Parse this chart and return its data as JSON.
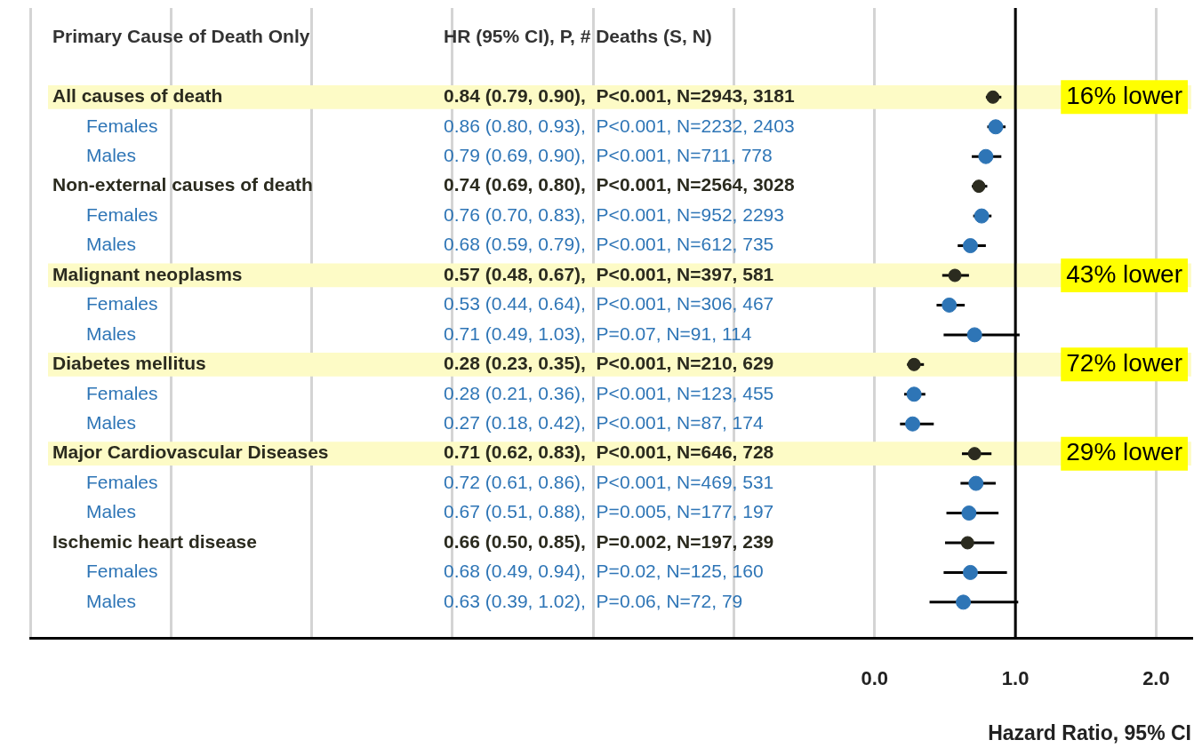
{
  "chart_data": {
    "type": "scatter",
    "orientation": "horizontal",
    "marker": "circle",
    "categories": [
      "All causes of death",
      "Females",
      "Males",
      "Non-external causes of death",
      "Females",
      "Males",
      "Malignant neoplasms",
      "Females",
      "Males",
      "Diabetes mellitus",
      "Females",
      "Males",
      "Major Cardiovascular Diseases",
      "Females",
      "Males",
      "Ischemic heart disease",
      "Females",
      "Males"
    ],
    "series": [
      {
        "color": "#2b2b1f",
        "values": [
          0.84,
          null,
          null,
          0.74,
          null,
          null,
          0.57,
          null,
          null,
          0.28,
          null,
          null,
          0.71,
          null,
          null,
          0.66,
          null,
          null
        ],
        "errors": [
          [
            0.79,
            0.9
          ],
          null,
          null,
          [
            0.69,
            0.8
          ],
          null,
          null,
          [
            0.48,
            0.67
          ],
          null,
          null,
          [
            0.23,
            0.35
          ],
          null,
          null,
          [
            0.62,
            0.83
          ],
          null,
          null,
          [
            0.5,
            0.85
          ],
          null,
          null
        ]
      },
      {
        "color": "#2e75b6",
        "values": [
          null,
          0.86,
          0.79,
          null,
          0.76,
          0.68,
          null,
          0.53,
          0.71,
          null,
          0.28,
          0.27,
          null,
          0.72,
          0.67,
          null,
          0.68,
          0.63
        ],
        "errors": [
          null,
          [
            0.8,
            0.93
          ],
          [
            0.69,
            0.9
          ],
          null,
          [
            0.7,
            0.83
          ],
          [
            0.59,
            0.79
          ],
          null,
          [
            0.44,
            0.64
          ],
          [
            0.49,
            1.03
          ],
          null,
          [
            0.21,
            0.36
          ],
          [
            0.18,
            0.42
          ],
          null,
          [
            0.61,
            0.86
          ],
          [
            0.51,
            0.88
          ],
          null,
          [
            0.49,
            0.94
          ],
          [
            0.39,
            1.02
          ]
        ]
      }
    ],
    "xlim": [
      -6,
      2.25
    ],
    "xticks": [
      {
        "value": -6,
        "label": null
      },
      {
        "value": -5,
        "label": null
      },
      {
        "value": -4,
        "label": null
      },
      {
        "value": -3,
        "label": null
      },
      {
        "value": -2,
        "label": null
      },
      {
        "value": -1,
        "label": null
      },
      {
        "value": 0,
        "label": "0.0"
      },
      {
        "value": 1,
        "label": "1.0"
      },
      {
        "value": 2,
        "label": "2.0"
      }
    ],
    "xlabel": "Hazard Ratio, 95% CI",
    "grid": "x",
    "ref_lines": [
      {
        "axis": "x",
        "value": 1,
        "color": "#000000"
      }
    ],
    "bands": [
      {
        "axis": "y",
        "from": "All causes of death",
        "to": "All causes of death",
        "color": "#fdfbc6"
      },
      {
        "axis": "y",
        "from": "Malignant neoplasms",
        "to": "Malignant neoplasms",
        "color": "#fdfbc6"
      },
      {
        "axis": "y",
        "from": "Diabetes mellitus",
        "to": "Diabetes mellitus",
        "color": "#fdfbc6"
      },
      {
        "axis": "y",
        "from": "Major Cardiovascular Diseases",
        "to": "Major Cardiovascular Diseases",
        "color": "#fdfbc6"
      }
    ],
    "annotations": [
      "Primary Cause of Death Only",
      "HR (95% CI), P, # Deaths (S, N)",
      "0.84 (0.79, 0.90),  P<0.001, N=2943, 3181",
      "0.86 (0.80, 0.93),  P<0.001, N=2232, 2403",
      "0.79 (0.69, 0.90),  P<0.001, N=711, 778",
      "0.74 (0.69, 0.80),  P<0.001, N=2564, 3028",
      "0.76 (0.70, 0.83),  P<0.001, N=952, 2293",
      "0.68 (0.59, 0.79),  P<0.001, N=612, 735",
      "0.57 (0.48, 0.67),  P<0.001, N=397, 581",
      "0.53 (0.44, 0.64),  P<0.001, N=306, 467",
      "0.71 (0.49, 1.03),  P=0.07, N=91, 114",
      "0.28 (0.23, 0.35),  P<0.001, N=210, 629",
      "0.28 (0.21, 0.36),  P<0.001, N=123, 455",
      "0.27 (0.18, 0.42),  P<0.001, N=87, 174",
      "0.71 (0.62, 0.83),  P<0.001, N=646, 728",
      "0.72 (0.61, 0.86),  P<0.001, N=469, 531",
      "0.67 (0.51, 0.88),  P=0.005, N=177, 197",
      "0.66 (0.50, 0.85),  P=0.002, N=197, 239",
      "0.68 (0.49, 0.94),  P=0.02, N=125, 160",
      "0.63 (0.39, 1.02),  P=0.06, N=72, 79",
      "16% lower",
      "43% lower",
      "72% lower",
      "29% lower"
    ]
  }
}
